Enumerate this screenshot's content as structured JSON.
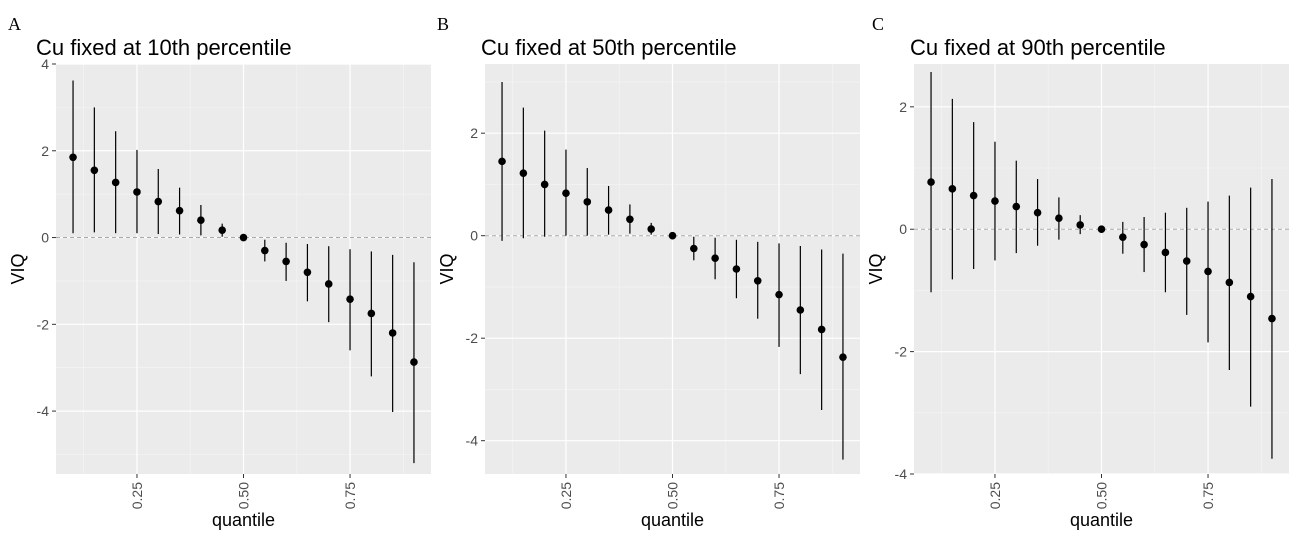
{
  "colors": {
    "panel_bg": "#EBEBEB",
    "grid_major": "#FFFFFF",
    "grid_minor": "#F5F5F5",
    "zero_line": "#A9A9A9",
    "marks": "#000000",
    "tick_text": "#4D4D4D",
    "title_text": "#000000"
  },
  "chart_data": [
    {
      "type": "scatter",
      "panel_tag": "A",
      "title": "Cu fixed at 10th percentile",
      "xlabel": "quantile",
      "ylabel": "VIQ",
      "x_ticks": [
        "0.25",
        "0.50",
        "0.75"
      ],
      "y_ticks": [
        "-4",
        "-2",
        "0",
        "2",
        "4"
      ],
      "x_tick_values": [
        0.25,
        0.5,
        0.75
      ],
      "y_tick_values": [
        -4,
        -2,
        0,
        2,
        4
      ],
      "xlim": [
        0.06,
        0.94
      ],
      "ylim": [
        -5.45,
        4.0
      ],
      "reference_line_y": 0,
      "grid": true,
      "series": [
        {
          "x": [
            0.1,
            0.15,
            0.2,
            0.25,
            0.3,
            0.35,
            0.4,
            0.45,
            0.5,
            0.55,
            0.6,
            0.65,
            0.7,
            0.75,
            0.8,
            0.85,
            0.9
          ],
          "y": [
            1.85,
            1.55,
            1.27,
            1.05,
            0.83,
            0.62,
            0.4,
            0.17,
            0.0,
            -0.3,
            -0.55,
            -0.8,
            -1.07,
            -1.42,
            -1.75,
            -2.2,
            -2.87
          ],
          "ymin": [
            0.1,
            0.12,
            0.1,
            0.1,
            0.08,
            0.07,
            0.05,
            0.02,
            0.0,
            -0.55,
            -1.0,
            -1.47,
            -1.95,
            -2.6,
            -3.2,
            -4.02,
            -5.2
          ],
          "ymax": [
            3.62,
            3.0,
            2.45,
            2.02,
            1.58,
            1.15,
            0.75,
            0.32,
            0.0,
            -0.05,
            -0.12,
            -0.15,
            -0.2,
            -0.27,
            -0.32,
            -0.4,
            -0.57
          ]
        }
      ]
    },
    {
      "type": "scatter",
      "panel_tag": "B",
      "title": "Cu fixed at 50th percentile",
      "xlabel": "quantile",
      "ylabel": "VIQ",
      "x_ticks": [
        "0.25",
        "0.50",
        "0.75"
      ],
      "y_ticks": [
        "-4",
        "-2",
        "0",
        "2"
      ],
      "x_tick_values": [
        0.25,
        0.5,
        0.75
      ],
      "y_tick_values": [
        -4,
        -2,
        0,
        2
      ],
      "xlim": [
        0.06,
        0.94
      ],
      "ylim": [
        -4.65,
        3.35
      ],
      "reference_line_y": 0,
      "grid": true,
      "series": [
        {
          "x": [
            0.1,
            0.15,
            0.2,
            0.25,
            0.3,
            0.35,
            0.4,
            0.45,
            0.5,
            0.55,
            0.6,
            0.65,
            0.7,
            0.75,
            0.8,
            0.85,
            0.9
          ],
          "y": [
            1.45,
            1.22,
            1.0,
            0.83,
            0.66,
            0.5,
            0.32,
            0.13,
            0.0,
            -0.25,
            -0.44,
            -0.65,
            -0.88,
            -1.15,
            -1.45,
            -1.83,
            -2.37
          ],
          "ymin": [
            -0.1,
            -0.05,
            -0.02,
            0.0,
            0.0,
            0.02,
            0.04,
            0.02,
            0.0,
            -0.48,
            -0.85,
            -1.22,
            -1.62,
            -2.17,
            -2.7,
            -3.4,
            -4.37
          ],
          "ymax": [
            3.0,
            2.5,
            2.05,
            1.68,
            1.32,
            0.97,
            0.61,
            0.25,
            0.0,
            -0.02,
            -0.04,
            -0.08,
            -0.12,
            -0.15,
            -0.2,
            -0.27,
            -0.35
          ]
        }
      ]
    },
    {
      "type": "scatter",
      "panel_tag": "C",
      "title": "Cu fixed at 90th percentile",
      "xlabel": "quantile",
      "ylabel": "VIQ",
      "x_ticks": [
        "0.25",
        "0.50",
        "0.75"
      ],
      "y_ticks": [
        "-4",
        "-2",
        "0",
        "2"
      ],
      "x_tick_values": [
        0.25,
        0.5,
        0.75
      ],
      "y_tick_values": [
        -4,
        -2,
        0,
        2
      ],
      "xlim": [
        0.06,
        0.94
      ],
      "ylim": [
        -4.0,
        2.7
      ],
      "reference_line_y": 0,
      "grid": true,
      "series": [
        {
          "x": [
            0.1,
            0.15,
            0.2,
            0.25,
            0.3,
            0.35,
            0.4,
            0.45,
            0.5,
            0.55,
            0.6,
            0.65,
            0.7,
            0.75,
            0.8,
            0.85,
            0.9
          ],
          "y": [
            0.77,
            0.66,
            0.55,
            0.46,
            0.37,
            0.27,
            0.18,
            0.07,
            0.0,
            -0.13,
            -0.25,
            -0.38,
            -0.52,
            -0.69,
            -0.87,
            -1.1,
            -1.46
          ],
          "ymin": [
            -1.03,
            -0.82,
            -0.65,
            -0.51,
            -0.39,
            -0.27,
            -0.17,
            -0.08,
            0.0,
            -0.4,
            -0.7,
            -1.03,
            -1.4,
            -1.85,
            -2.3,
            -2.9,
            -3.75
          ],
          "ymax": [
            2.57,
            2.13,
            1.75,
            1.43,
            1.12,
            0.82,
            0.52,
            0.23,
            0.0,
            0.12,
            0.2,
            0.27,
            0.35,
            0.45,
            0.55,
            0.68,
            0.82
          ]
        }
      ]
    }
  ]
}
